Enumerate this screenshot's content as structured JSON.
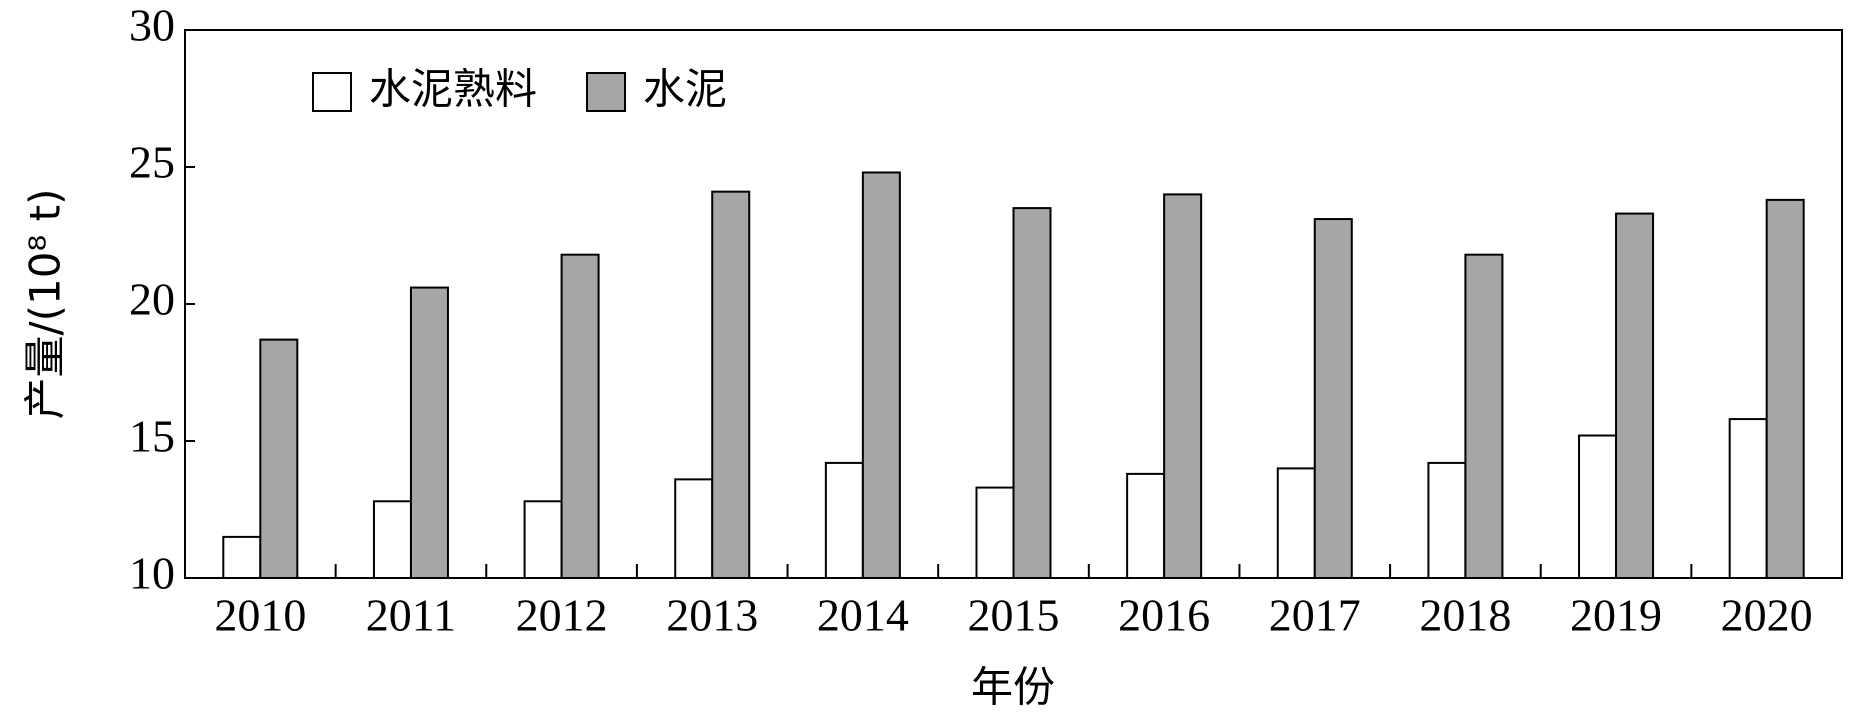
{
  "chart_data": {
    "type": "bar",
    "xlabel": "年份",
    "ylabel": "产量/(10⁸ t)",
    "categories": [
      "2010",
      "2011",
      "2012",
      "2013",
      "2014",
      "2015",
      "2016",
      "2017",
      "2018",
      "2019",
      "2020"
    ],
    "series": [
      {
        "name": "水泥熟料",
        "color": "#ffffff",
        "values": [
          11.5,
          12.8,
          12.8,
          13.6,
          14.2,
          13.3,
          13.8,
          14.0,
          14.2,
          15.2,
          15.8
        ]
      },
      {
        "name": "水泥",
        "color": "#a6a6a6",
        "values": [
          18.7,
          20.6,
          21.8,
          24.1,
          24.8,
          23.5,
          24.0,
          23.1,
          21.8,
          23.3,
          23.8
        ]
      }
    ],
    "ylim": [
      10,
      30
    ],
    "yticks": [
      10,
      15,
      20,
      25,
      30
    ],
    "grid": false,
    "legend": "upper left"
  }
}
